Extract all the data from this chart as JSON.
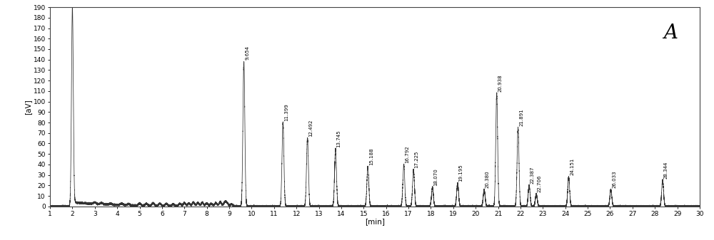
{
  "xlim": [
    1.0,
    30.0
  ],
  "ylim": [
    0,
    190
  ],
  "yticks": [
    0,
    10,
    20,
    30,
    40,
    50,
    60,
    70,
    80,
    90,
    100,
    110,
    120,
    130,
    140,
    150,
    160,
    170,
    180,
    190
  ],
  "xticks": [
    1,
    2,
    3,
    4,
    5,
    6,
    7,
    8,
    9,
    10,
    11,
    12,
    13,
    14,
    15,
    16,
    17,
    18,
    19,
    20,
    21,
    22,
    23,
    24,
    25,
    26,
    27,
    28,
    29,
    30
  ],
  "xlabel": "[min]",
  "ylabel": "[aV]",
  "label_A": "A",
  "solvent_peak_time": 2.0,
  "solvent_peak_height": 190,
  "peaks": [
    {
      "time": 9.654,
      "height": 138,
      "label": "9.654"
    },
    {
      "time": 11.399,
      "height": 80,
      "label": "11.399"
    },
    {
      "time": 12.492,
      "height": 65,
      "label": "12.492"
    },
    {
      "time": 13.745,
      "height": 55,
      "label": "13.745"
    },
    {
      "time": 15.188,
      "height": 38,
      "label": "15.188"
    },
    {
      "time": 16.792,
      "height": 40,
      "label": "16.792"
    },
    {
      "time": 17.225,
      "height": 35,
      "label": "17.225"
    },
    {
      "time": 18.07,
      "height": 18,
      "label": "18.070"
    },
    {
      "time": 19.195,
      "height": 22,
      "label": "19.195"
    },
    {
      "time": 20.38,
      "height": 16,
      "label": "20.380"
    },
    {
      "time": 20.938,
      "height": 108,
      "label": "20.938"
    },
    {
      "time": 21.891,
      "height": 75,
      "label": "21.891"
    },
    {
      "time": 22.387,
      "height": 20,
      "label": "22.387"
    },
    {
      "time": 22.706,
      "height": 12,
      "label": "22.706"
    },
    {
      "time": 24.151,
      "height": 28,
      "label": "24.151"
    },
    {
      "time": 26.033,
      "height": 16,
      "label": "26.033"
    },
    {
      "time": 28.344,
      "height": 25,
      "label": "28.344"
    }
  ],
  "background_color": "#ffffff",
  "line_color": "#333333",
  "peak_sigma": 0.042,
  "solvent_sigma": 0.04,
  "small_bumps": [
    [
      3.0,
      1.5
    ],
    [
      3.3,
      1.2
    ],
    [
      3.7,
      1.0
    ],
    [
      4.2,
      1.3
    ],
    [
      4.5,
      1.2
    ],
    [
      5.0,
      2.0
    ],
    [
      5.3,
      1.8
    ],
    [
      5.6,
      2.5
    ],
    [
      5.9,
      2.2
    ],
    [
      6.2,
      2.0
    ],
    [
      6.5,
      1.8
    ],
    [
      6.8,
      2.2
    ],
    [
      7.0,
      3.0
    ],
    [
      7.2,
      2.5
    ],
    [
      7.4,
      3.5
    ],
    [
      7.6,
      3.0
    ],
    [
      7.8,
      3.5
    ],
    [
      8.0,
      2.8
    ],
    [
      8.2,
      2.5
    ],
    [
      8.4,
      3.2
    ],
    [
      8.6,
      4.0
    ],
    [
      8.8,
      3.5
    ],
    [
      8.9,
      3.0
    ],
    [
      9.1,
      2.0
    ]
  ]
}
